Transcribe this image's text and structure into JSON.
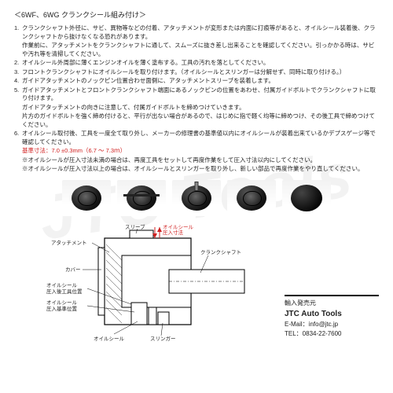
{
  "title": "＜6WF、6WG クランクシール組み付け＞",
  "steps": [
    {
      "n": "1.",
      "lines": [
        "クランクシャフト外径に、サビ、異物等などの付着、アタッチメントが変形または内面に打痕等があると、オイルシール装着後、クランクシャフトから抜けなくなる恐れがあります。",
        "作業前に、アタッチメントをクランクシャフトに通して、スムーズに抜き差し出来ることを確認してください。引っかかる時は、サビや汚れ等を清掃してください。"
      ]
    },
    {
      "n": "2.",
      "lines": [
        "オイルシール外周部に薄くエンジンオイルを薄く塗布する。工具の汚れを落としてください。"
      ]
    },
    {
      "n": "3.",
      "lines": [
        "フロントクランクシャフトにオイルシールを取り付けます。（オイルシールとスリンガーは分解せず、同時に取り付ける。）"
      ]
    },
    {
      "n": "4.",
      "lines": [
        "ガイドアタッチメントのノックピン位置合わせ面側に、アタッチメントスリーブを装着します。"
      ]
    },
    {
      "n": "5.",
      "lines": [
        "ガイドアタッチメントとフロントクランクシャフト端面にあるノックピンの位置をあわせ、付属ガイドボルトでクランクシャフトに取り付けます。",
        "ガイドアタッチメントの向きに注意して、付属ガイドボルトを締めつけていきます。",
        "片方のガイドボルトを強く締め付けると、平行が出ない場合があるので、はじめに指で軽く均等に締めつけ、その後工具で締めつけてください。"
      ]
    },
    {
      "n": "6.",
      "lines": [
        "オイルシール取付後、工具を一度全て取り外し、メーカーの修理書の基準値以内にオイルシールが装着出来ているかデプスゲージ等で確認してください。"
      ]
    }
  ],
  "refDim": {
    "label": "基準寸法",
    "value": "：7.0 ±0.3mm（6.7 ～ 7.3ｍ）"
  },
  "notes": [
    "※オイルシールが圧入寸法未満の場合は、再度工具をセットして再度作業をして圧入寸法以内にしてください。",
    "※オイルシールが圧入寸法以上の場合は、オイルシールとスリンガーを取り外し、新しい部品で再度作業をやり直してください。"
  ],
  "diagram": {
    "labels": {
      "sleeve": "スリーブ",
      "attachment": "アタッチメント",
      "cover": "カバー",
      "sealPos": "オイルシール\n圧入後工具位置",
      "sealStd": "オイルシール\n圧入基準位置",
      "seal": "オイルシール",
      "slinger": "スリンガー",
      "crank": "クランクシャフト",
      "pressDim": "オイルシール\n圧入寸法"
    }
  },
  "vendor": {
    "heading": "輸入発売元",
    "company": "JTC Auto Tools",
    "email": "E-Mail：info@jtc.jp",
    "tel": "TEL：0834-22-7600"
  },
  "watermark": "JTC Tools"
}
